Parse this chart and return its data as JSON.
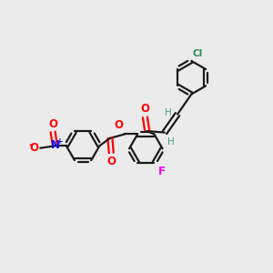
{
  "background_color": "#ebebeb",
  "bond_color": "#1a1a1a",
  "atom_colors": {
    "O": "#ff0000",
    "N": "#1010ee",
    "F": "#ee00ee",
    "Cl": "#2e8b57",
    "H": "#4a9a8a",
    "minus": "#ff0000",
    "plus": "#1010ee"
  },
  "figsize": [
    3.0,
    3.0
  ],
  "dpi": 100,
  "lw": 1.6,
  "r": 0.62
}
